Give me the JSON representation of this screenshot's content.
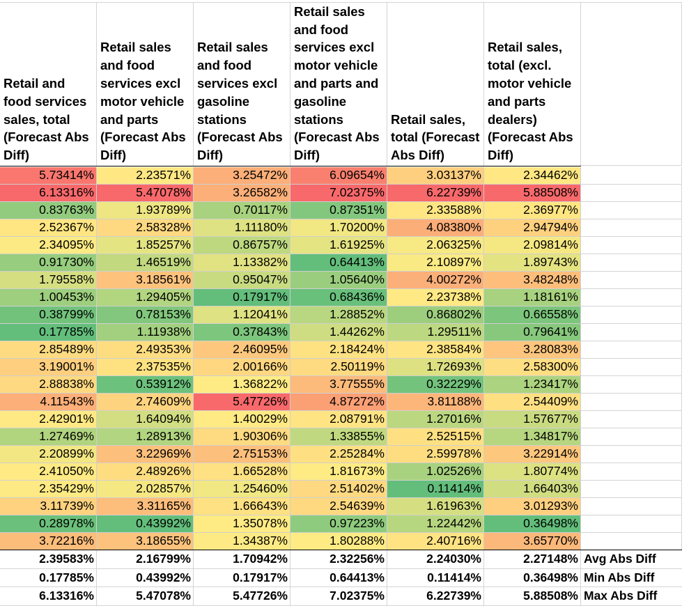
{
  "headers": [
    "Retail and food services sales, total (Forecast Abs Diff)",
    "Retail sales and food services excl motor vehicle and parts (Forecast Abs Diff)",
    "Retail sales and food services excl gasoline stations (Forecast Abs Diff)",
    "Retail sales and food services excl motor vehicle and parts and gasoline stations (Forecast Abs Diff)",
    "Retail sales, total (Forecast Abs Diff)",
    "Retail sales, total (excl. motor vehicle and parts dealers) (Forecast Abs Diff)"
  ],
  "rows": [
    [
      "5.73414%",
      "2.23571%",
      "3.25472%",
      "6.09654%",
      "3.03137%",
      "2.34462%"
    ],
    [
      "6.13316%",
      "5.47078%",
      "3.26582%",
      "7.02375%",
      "6.22739%",
      "5.88508%"
    ],
    [
      "0.83763%",
      "1.93789%",
      "0.70117%",
      "0.87351%",
      "2.33588%",
      "2.36977%"
    ],
    [
      "2.52367%",
      "2.58328%",
      "1.11180%",
      "1.70200%",
      "4.08380%",
      "2.94794%"
    ],
    [
      "2.34095%",
      "1.85257%",
      "0.86757%",
      "1.61925%",
      "2.06325%",
      "2.09814%"
    ],
    [
      "0.91730%",
      "1.46519%",
      "1.13382%",
      "0.64413%",
      "2.10897%",
      "1.89743%"
    ],
    [
      "1.79558%",
      "3.18561%",
      "0.95047%",
      "1.05640%",
      "4.00272%",
      "3.48248%"
    ],
    [
      "1.00453%",
      "1.29405%",
      "0.17917%",
      "0.68436%",
      "2.23738%",
      "1.18161%"
    ],
    [
      "0.38799%",
      "0.78153%",
      "1.12041%",
      "1.28852%",
      "0.86802%",
      "0.66558%"
    ],
    [
      "0.17785%",
      "1.11938%",
      "0.37843%",
      "1.44262%",
      "1.29511%",
      "0.79641%"
    ],
    [
      "2.85489%",
      "2.49353%",
      "2.46095%",
      "2.18424%",
      "2.38584%",
      "3.28083%"
    ],
    [
      "3.19001%",
      "2.37535%",
      "2.00166%",
      "2.50119%",
      "1.72693%",
      "2.58300%"
    ],
    [
      "2.88838%",
      "0.53912%",
      "1.36822%",
      "3.77555%",
      "0.32229%",
      "1.23417%"
    ],
    [
      "4.11543%",
      "2.74609%",
      "5.47726%",
      "4.87272%",
      "3.81188%",
      "2.54409%"
    ],
    [
      "2.42901%",
      "1.64094%",
      "1.40029%",
      "2.08791%",
      "1.27016%",
      "1.57677%"
    ],
    [
      "1.27469%",
      "1.28913%",
      "1.90306%",
      "1.33855%",
      "2.52515%",
      "1.34817%"
    ],
    [
      "2.20899%",
      "3.22969%",
      "2.75153%",
      "2.25284%",
      "2.59978%",
      "3.22914%"
    ],
    [
      "2.41050%",
      "2.48926%",
      "1.66528%",
      "1.81673%",
      "1.02526%",
      "1.80774%"
    ],
    [
      "2.35429%",
      "2.02857%",
      "1.25460%",
      "2.51402%",
      "0.11414%",
      "1.66403%"
    ],
    [
      "3.11739%",
      "3.31165%",
      "1.66643%",
      "2.54639%",
      "1.61963%",
      "3.01293%"
    ],
    [
      "0.28978%",
      "0.43992%",
      "1.35078%",
      "0.97223%",
      "1.22442%",
      "0.36498%"
    ],
    [
      "3.72216%",
      "3.18655%",
      "1.34387%",
      "1.80288%",
      "2.40716%",
      "3.65770%"
    ]
  ],
  "summary": [
    {
      "label": "Avg Abs Diff",
      "values": [
        "2.39583%",
        "2.16799%",
        "1.70942%",
        "2.32256%",
        "2.24030%",
        "2.27148%"
      ]
    },
    {
      "label": "Min Abs Diff",
      "values": [
        "0.17785%",
        "0.43992%",
        "0.17917%",
        "0.64413%",
        "0.11414%",
        "0.36498%"
      ]
    },
    {
      "label": "Max Abs Diff",
      "values": [
        "6.13316%",
        "5.47078%",
        "5.47726%",
        "7.02375%",
        "6.22739%",
        "5.88508%"
      ]
    }
  ],
  "colors": {
    "low": "#63be7b",
    "mid": "#ffeb84",
    "high": "#f8696b",
    "gridline": "#d4d4d4"
  }
}
